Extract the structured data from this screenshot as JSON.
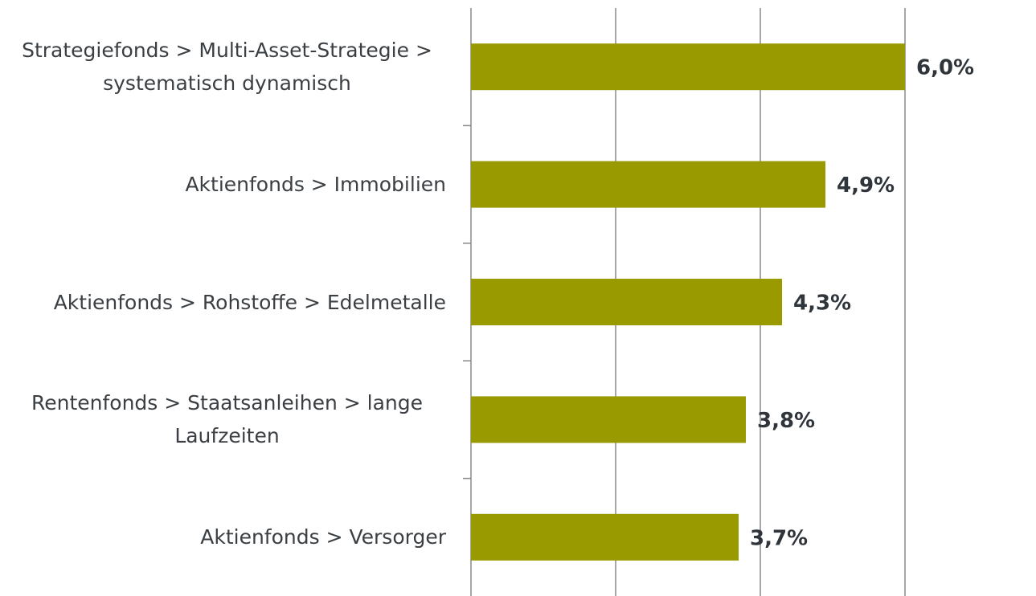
{
  "chart_data": {
    "type": "bar",
    "orientation": "horizontal",
    "categories": [
      "Strategiefonds > Multi-Asset-Strategie > systematisch dynamisch",
      "Aktienfonds > Immobilien",
      "Aktienfonds > Rohstoffe > Edelmetalle",
      "Rentenfonds > Staatsanleihen > lange Laufzeiten",
      "Aktienfonds > Versorger"
    ],
    "values": [
      6.0,
      4.9,
      4.3,
      3.8,
      3.7
    ],
    "value_labels": [
      "6,0%",
      "4,9%",
      "4,3%",
      "3,8%",
      "3,7%"
    ],
    "color": "#999900",
    "xlim": [
      0,
      6
    ],
    "xticks": [
      0,
      2,
      4,
      6
    ],
    "grid": true
  }
}
